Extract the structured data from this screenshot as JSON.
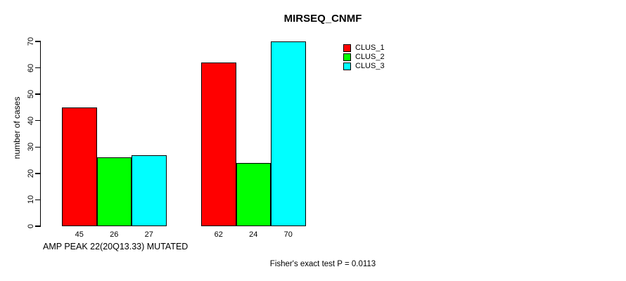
{
  "chart_data": {
    "type": "bar",
    "title": "MIRSEQ_CNMF",
    "ylabel": "number of cases",
    "xlabel": "AMP PEAK 22(20Q13.33) MUTATED",
    "annotation": "Fisher's exact test P = 0.0113",
    "ylim": [
      0,
      70
    ],
    "yticks": [
      0,
      10,
      20,
      30,
      40,
      50,
      60,
      70
    ],
    "grid": false,
    "legend_position": "top-right",
    "show_values_below_bars": true,
    "num_groups": 2,
    "series": [
      {
        "name": "CLUS_1",
        "color": "#ff0000",
        "values": [
          45,
          62
        ]
      },
      {
        "name": "CLUS_2",
        "color": "#00ff00",
        "values": [
          26,
          24
        ]
      },
      {
        "name": "CLUS_3",
        "color": "#00ffff",
        "values": [
          27,
          70
        ]
      }
    ],
    "colors": {
      "bar_border": "#000000",
      "text": "#000000",
      "background": "#ffffff"
    }
  }
}
